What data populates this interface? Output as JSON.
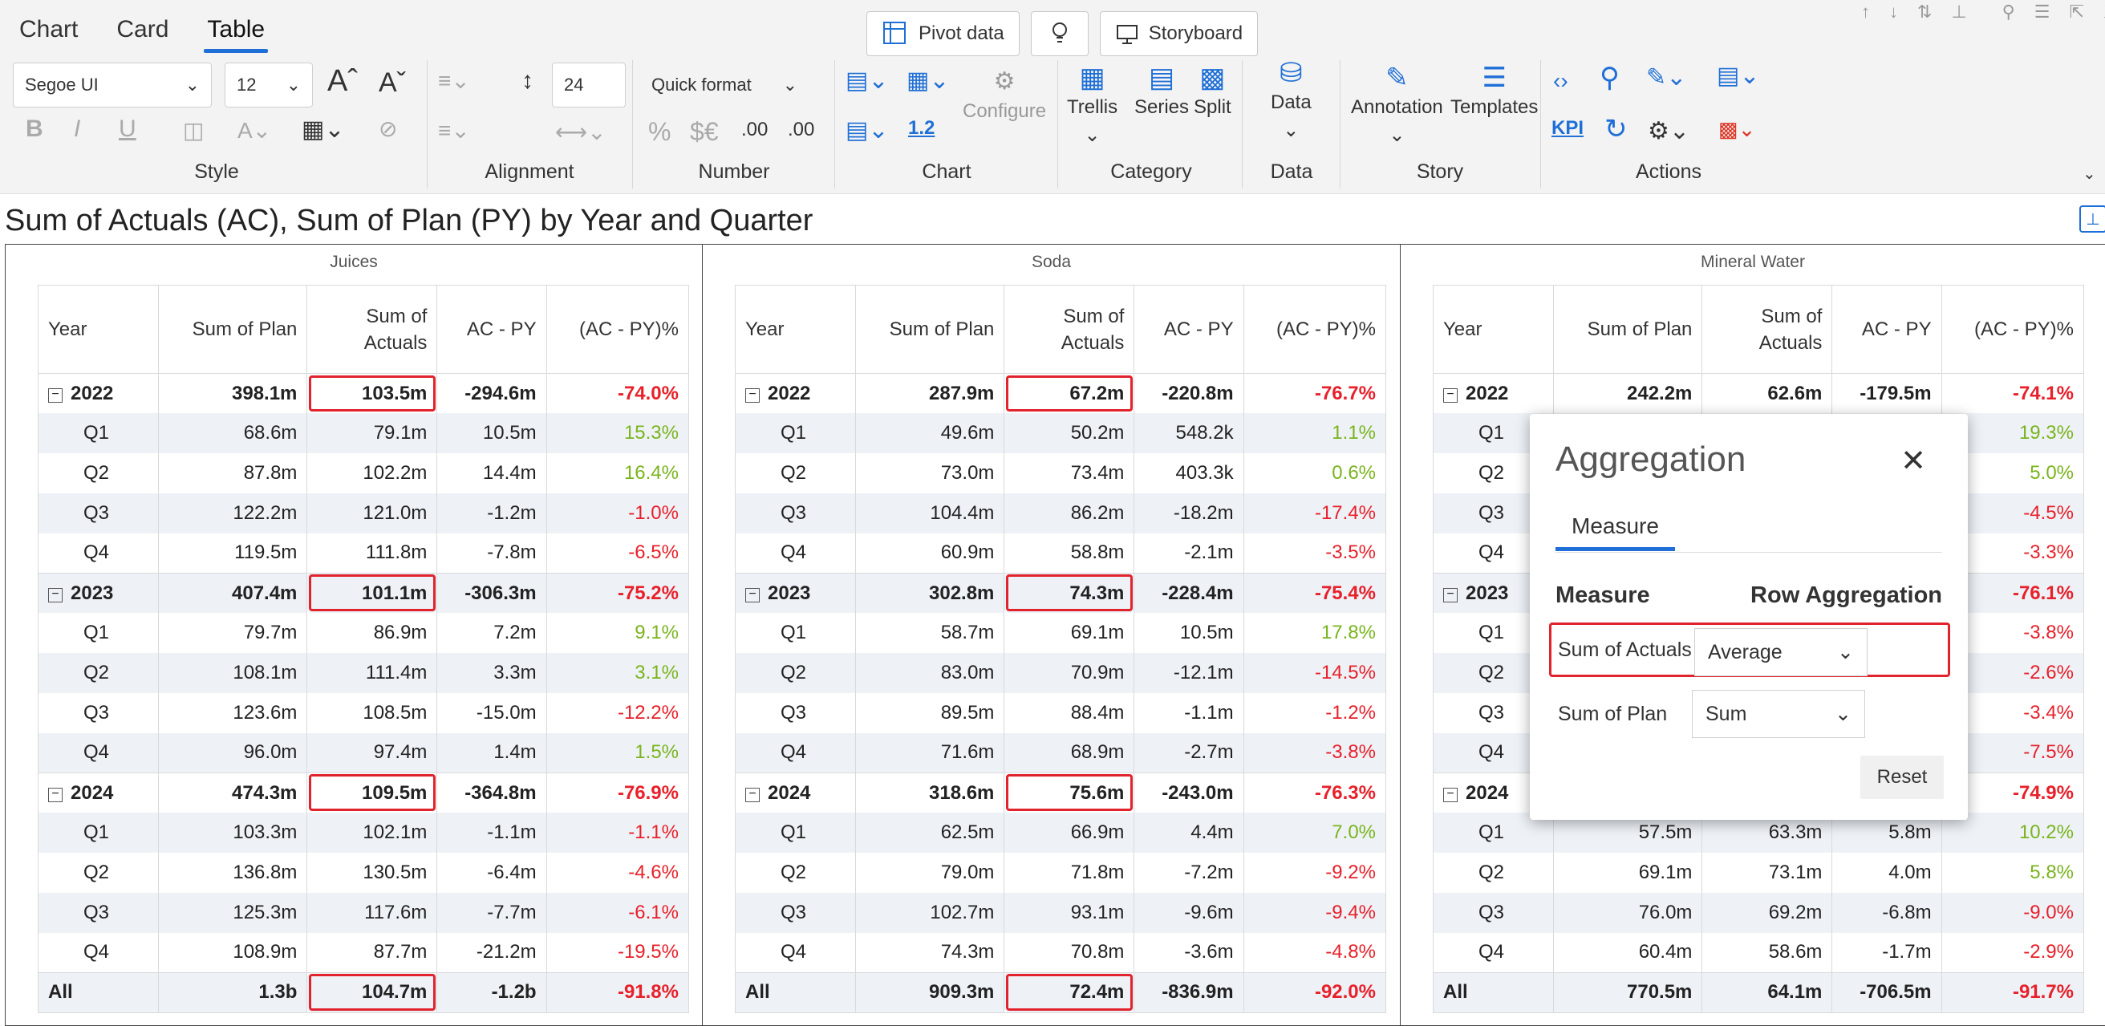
{
  "tabs": [
    "Chart",
    "Card",
    "Table"
  ],
  "top_buttons": {
    "pivot": "Pivot data",
    "storyboard": "Storyboard"
  },
  "ribbon": {
    "font": "Segoe UI",
    "size": "12",
    "spacing": "24",
    "quick_format": "Quick format",
    "groups": {
      "style": "Style",
      "alignment": "Alignment",
      "number": "Number",
      "chart": "Chart",
      "category": "Category",
      "data": "Data",
      "story": "Story",
      "actions": "Actions"
    },
    "chart_labels": {
      "configure": "Configure",
      "decimal": "1.2"
    },
    "number_labels": {
      "percent": "%",
      "currency": "$€",
      "dec_minus": ".00",
      "dec_plus": ".00"
    },
    "buttons": {
      "trellis": "Trellis",
      "series": "Series",
      "split": "Split",
      "data": "Data",
      "annotation": "Annotation",
      "templates": "Templates",
      "kpi": "KPI"
    }
  },
  "title": "Sum of Actuals (AC), Sum of Plan (PY) by Year and Quarter",
  "columns": [
    "Year",
    "Sum of Plan",
    "Sum of Actuals",
    "AC - PY",
    "(AC - PY)%"
  ],
  "panels": [
    {
      "name": "Juices",
      "rows": [
        [
          "2022",
          "398.1m",
          "103.5m",
          "-294.6m",
          "-74.0%"
        ],
        [
          "Q1",
          "68.6m",
          "79.1m",
          "10.5m",
          "15.3%"
        ],
        [
          "Q2",
          "87.8m",
          "102.2m",
          "14.4m",
          "16.4%"
        ],
        [
          "Q3",
          "122.2m",
          "121.0m",
          "-1.2m",
          "-1.0%"
        ],
        [
          "Q4",
          "119.5m",
          "111.8m",
          "-7.8m",
          "-6.5%"
        ],
        [
          "2023",
          "407.4m",
          "101.1m",
          "-306.3m",
          "-75.2%"
        ],
        [
          "Q1",
          "79.7m",
          "86.9m",
          "7.2m",
          "9.1%"
        ],
        [
          "Q2",
          "108.1m",
          "111.4m",
          "3.3m",
          "3.1%"
        ],
        [
          "Q3",
          "123.6m",
          "108.5m",
          "-15.0m",
          "-12.2%"
        ],
        [
          "Q4",
          "96.0m",
          "97.4m",
          "1.4m",
          "1.5%"
        ],
        [
          "2024",
          "474.3m",
          "109.5m",
          "-364.8m",
          "-76.9%"
        ],
        [
          "Q1",
          "103.3m",
          "102.1m",
          "-1.1m",
          "-1.1%"
        ],
        [
          "Q2",
          "136.8m",
          "130.5m",
          "-6.4m",
          "-4.6%"
        ],
        [
          "Q3",
          "125.3m",
          "117.6m",
          "-7.7m",
          "-6.1%"
        ],
        [
          "Q4",
          "108.9m",
          "87.7m",
          "-21.2m",
          "-19.5%"
        ],
        [
          "All",
          "1.3b",
          "104.7m",
          "-1.2b",
          "-91.8%"
        ]
      ]
    },
    {
      "name": "Soda",
      "rows": [
        [
          "2022",
          "287.9m",
          "67.2m",
          "-220.8m",
          "-76.7%"
        ],
        [
          "Q1",
          "49.6m",
          "50.2m",
          "548.2k",
          "1.1%"
        ],
        [
          "Q2",
          "73.0m",
          "73.4m",
          "403.3k",
          "0.6%"
        ],
        [
          "Q3",
          "104.4m",
          "86.2m",
          "-18.2m",
          "-17.4%"
        ],
        [
          "Q4",
          "60.9m",
          "58.8m",
          "-2.1m",
          "-3.5%"
        ],
        [
          "2023",
          "302.8m",
          "74.3m",
          "-228.4m",
          "-75.4%"
        ],
        [
          "Q1",
          "58.7m",
          "69.1m",
          "10.5m",
          "17.8%"
        ],
        [
          "Q2",
          "83.0m",
          "70.9m",
          "-12.1m",
          "-14.5%"
        ],
        [
          "Q3",
          "89.5m",
          "88.4m",
          "-1.1m",
          "-1.2%"
        ],
        [
          "Q4",
          "71.6m",
          "68.9m",
          "-2.7m",
          "-3.8%"
        ],
        [
          "2024",
          "318.6m",
          "75.6m",
          "-243.0m",
          "-76.3%"
        ],
        [
          "Q1",
          "62.5m",
          "66.9m",
          "4.4m",
          "7.0%"
        ],
        [
          "Q2",
          "79.0m",
          "71.8m",
          "-7.2m",
          "-9.2%"
        ],
        [
          "Q3",
          "102.7m",
          "93.1m",
          "-9.6m",
          "-9.4%"
        ],
        [
          "Q4",
          "74.3m",
          "70.8m",
          "-3.6m",
          "-4.8%"
        ],
        [
          "All",
          "909.3m",
          "72.4m",
          "-836.9m",
          "-92.0%"
        ]
      ]
    },
    {
      "name": "Mineral Water",
      "rows": [
        [
          "2022",
          "242.2m",
          "62.6m",
          "-179.5m",
          "-74.1%"
        ],
        [
          "Q1",
          "",
          "",
          "",
          "19.3%"
        ],
        [
          "Q2",
          "",
          "",
          "",
          "5.0%"
        ],
        [
          "Q3",
          "",
          "",
          "",
          "-4.5%"
        ],
        [
          "Q4",
          "",
          "",
          "",
          "-3.3%"
        ],
        [
          "2023",
          "",
          "",
          "",
          "-76.1%"
        ],
        [
          "Q1",
          "",
          "",
          "",
          "-3.8%"
        ],
        [
          "Q2",
          "",
          "",
          "",
          "-2.6%"
        ],
        [
          "Q3",
          "",
          "",
          "",
          "-3.4%"
        ],
        [
          "Q4",
          "",
          "",
          "",
          "-7.5%"
        ],
        [
          "2024",
          "",
          "",
          "",
          "-74.9%"
        ],
        [
          "Q1",
          "57.5m",
          "63.3m",
          "5.8m",
          "10.2%"
        ],
        [
          "Q2",
          "69.1m",
          "73.1m",
          "4.0m",
          "5.8%"
        ],
        [
          "Q3",
          "76.0m",
          "69.2m",
          "-6.8m",
          "-9.0%"
        ],
        [
          "Q4",
          "60.4m",
          "58.6m",
          "-1.7m",
          "-2.9%"
        ],
        [
          "All",
          "770.5m",
          "64.1m",
          "-706.5m",
          "-91.7%"
        ]
      ]
    }
  ],
  "dialog": {
    "title": "Aggregation",
    "tab": "Measure",
    "col_measure": "Measure",
    "col_agg": "Row Aggregation",
    "rows": [
      {
        "measure": "Sum of Actuals",
        "agg": "Average"
      },
      {
        "measure": "Sum of Plan",
        "agg": "Sum"
      }
    ],
    "reset": "Reset"
  },
  "colors": {
    "accent": "#1f6fd6",
    "negative": "#e8202a",
    "positive": "#7ab41d",
    "highlight": "#e1232d"
  }
}
